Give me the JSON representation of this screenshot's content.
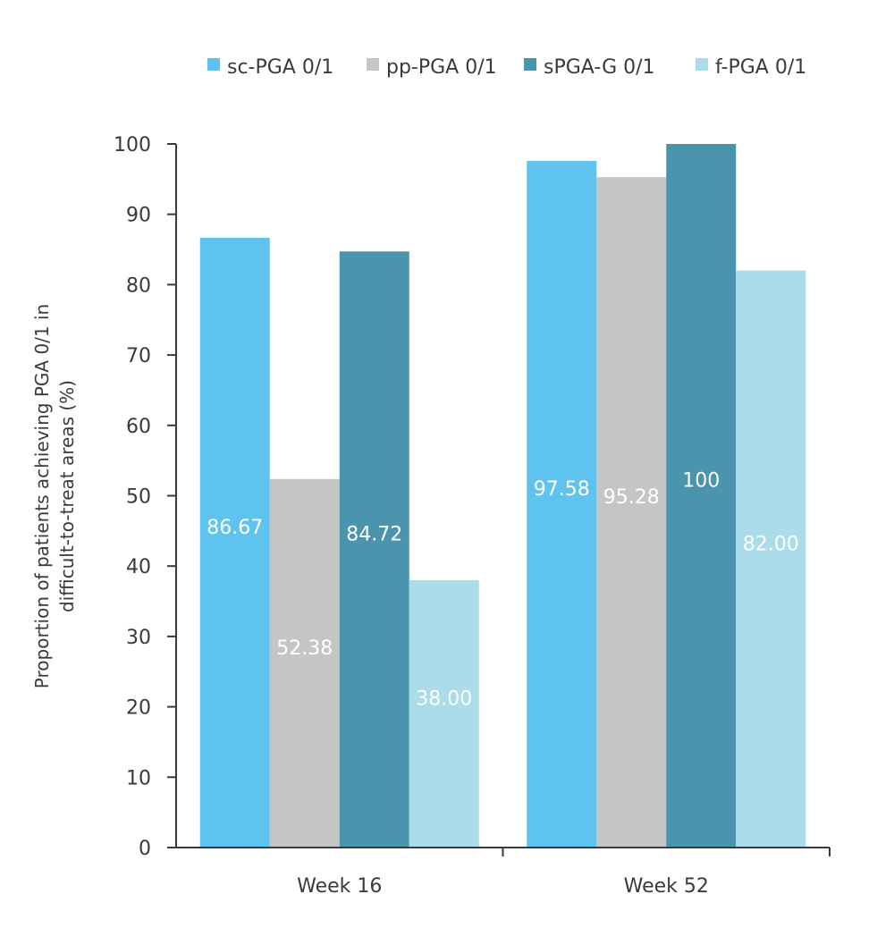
{
  "chart_data": {
    "type": "bar",
    "title": "",
    "xlabel": "",
    "ylabel": [
      "Proportion of patients achieving PGA 0/1  in",
      "difficult-to-treat areas (%)"
    ],
    "ylim": [
      0,
      100
    ],
    "yticks": [
      0,
      10,
      20,
      30,
      40,
      50,
      60,
      70,
      80,
      90,
      100
    ],
    "categories": [
      "Week 16",
      "Week 52"
    ],
    "legend_position": "top-right",
    "grid": false,
    "series": [
      {
        "name": "sc-PGA 0/1",
        "color": "#5fc3ef",
        "values": [
          86.67,
          97.58
        ],
        "labels": [
          "86.67",
          "97.58"
        ]
      },
      {
        "name": "pp-PGA 0/1",
        "color": "#c5c5c5",
        "values": [
          52.38,
          95.28
        ],
        "labels": [
          "52.38",
          "95.28"
        ]
      },
      {
        "name": "sPGA-G 0/1",
        "color": "#4a94ae",
        "values": [
          84.72,
          100
        ],
        "labels": [
          "84.72",
          "100"
        ]
      },
      {
        "name": "f-PGA 0/1",
        "color": "#abdcea",
        "values": [
          38.0,
          82.0
        ],
        "labels": [
          "38.00",
          "82.00"
        ]
      }
    ]
  }
}
